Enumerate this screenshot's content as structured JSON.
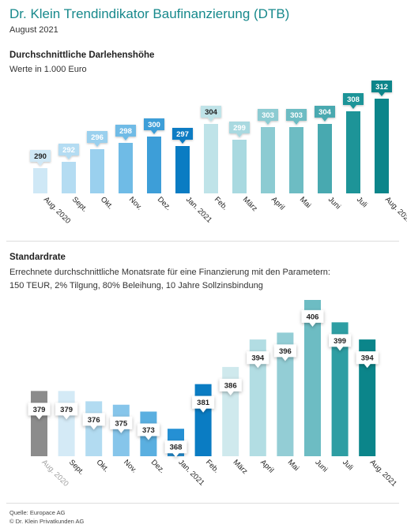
{
  "header": {
    "title": "Dr. Klein Trendindikator Baufinanzierung (DTB)",
    "date": "August 2021"
  },
  "section1": {
    "title": "Durchschnittliche Darlehenshöhe",
    "unit": "Werte in 1.000 Euro"
  },
  "section2": {
    "title": "Standardrate",
    "desc_line1": "Errechnete durchschnittliche Monatsrate für eine Finanzierung mit den Parametern:",
    "desc_line2": "150 TEUR, 2% Tilgung, 80% Beleihung, 10 Jahre Sollzinsbindung"
  },
  "footer": {
    "source": "Quelle: Europace AG",
    "copyright": "© Dr. Klein Privatkunden AG"
  },
  "chart_data": [
    {
      "type": "bar",
      "title": "Durchschnittliche Darlehenshöhe",
      "categories": [
        "Aug. 2020",
        "Sept.",
        "Okt.",
        "Nov.",
        "Dez.",
        "Jan. 2021",
        "Feb.",
        "März",
        "April",
        "Mai",
        "Juni",
        "Juli",
        "Aug. 2021"
      ],
      "values": [
        290,
        292,
        296,
        298,
        300,
        297,
        304,
        299,
        303,
        303,
        304,
        308,
        312
      ],
      "colors": [
        "#cfe8f6",
        "#b4dcf2",
        "#9ad0ee",
        "#6fbbe6",
        "#3d9ed8",
        "#0a7cc3",
        "#bfe3e8",
        "#a9d9e0",
        "#8ccbd2",
        "#6dbcc3",
        "#48a9b0",
        "#1d9498",
        "#0b858a"
      ],
      "label_colors": [
        "#cfe8f6",
        "#b4dcf2",
        "#9ad0ee",
        "#6fbbe6",
        "#3d9ed8",
        "#0a7cc3",
        "#bfe3e8",
        "#a9d9e0",
        "#8ccbd2",
        "#6dbcc3",
        "#48a9b0",
        "#1d9498",
        "#0b858a"
      ],
      "label_text_colors": [
        "#222222",
        "#ffffff",
        "#ffffff",
        "#ffffff",
        "#ffffff",
        "#ffffff",
        "#222222",
        "#ffffff",
        "#ffffff",
        "#ffffff",
        "#ffffff",
        "#ffffff",
        "#ffffff"
      ]
    },
    {
      "type": "bar",
      "title": "Standardrate",
      "categories": [
        "Aug. 2020",
        "Sept.",
        "Okt.",
        "Nov.",
        "Dez.",
        "Jan. 2021",
        "Feb.",
        "März",
        "April",
        "Mai",
        "Juni",
        "Juli",
        "Aug. 2021"
      ],
      "values": [
        379,
        379,
        376,
        375,
        373,
        368,
        381,
        386,
        394,
        396,
        406,
        399,
        394
      ],
      "colors": [
        "#8c8c8c",
        "#d4eaf6",
        "#b2dbf1",
        "#86c5ea",
        "#5aafe0",
        "#2590d4",
        "#0a7cc3",
        "#cfe9ed",
        "#b2dde3",
        "#93cdd5",
        "#6dbcc3",
        "#2e9ea3",
        "#0b858a"
      ],
      "label_text_color": "#222222"
    }
  ]
}
